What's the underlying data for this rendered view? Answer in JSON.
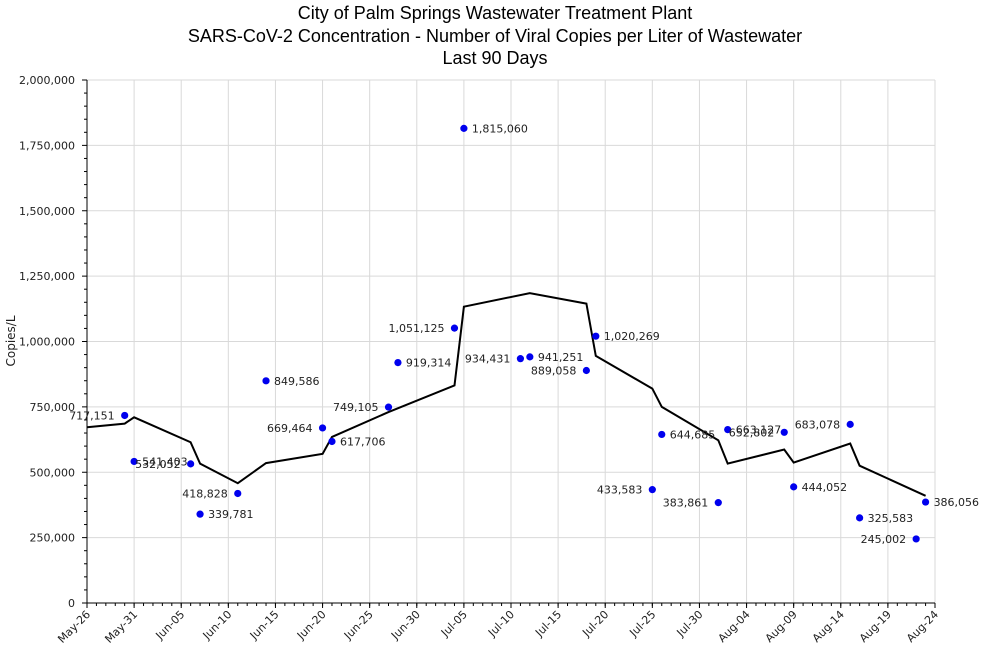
{
  "chart_data": {
    "type": "scatter",
    "title": [
      "City of Palm Springs Wastewater Treatment Plant",
      "SARS-CoV-2 Concentration - Number of Viral Copies per Liter of Wastewater",
      "Last 90 Days"
    ],
    "ylabel": "Copies/L",
    "ylim": [
      0,
      2000000
    ],
    "y_ticks": [
      0,
      250000,
      500000,
      750000,
      1000000,
      1250000,
      1500000,
      1750000,
      2000000
    ],
    "y_tick_labels": [
      "0",
      "250,000",
      "500,000",
      "750,000",
      "1,000,000",
      "1,250,000",
      "1,500,000",
      "1,750,000",
      "2,000,000"
    ],
    "x_ticks": [
      "2024-05-26",
      "2024-05-31",
      "2024-06-05",
      "2024-06-10",
      "2024-06-15",
      "2024-06-20",
      "2024-06-25",
      "2024-06-30",
      "2024-07-05",
      "2024-07-10",
      "2024-07-15",
      "2024-07-20",
      "2024-07-25",
      "2024-07-30",
      "2024-08-04",
      "2024-08-09",
      "2024-08-14",
      "2024-08-19",
      "2024-08-24"
    ],
    "x_tick_labels": [
      "May-26",
      "May-31",
      "Jun-05",
      "Jun-10",
      "Jun-15",
      "Jun-20",
      "Jun-25",
      "Jun-30",
      "Jul-05",
      "Jul-10",
      "Jul-15",
      "Jul-20",
      "Jul-25",
      "Jul-30",
      "Aug-04",
      "Aug-09",
      "Aug-14",
      "Aug-19",
      "Aug-24"
    ],
    "xlim": [
      "2024-05-26",
      "2024-08-24"
    ],
    "grid": true,
    "series": [
      {
        "kind": "scatter",
        "color": "#0000ee",
        "points": [
          {
            "x": "2024-05-30",
            "y": 717151,
            "label": "717,151"
          },
          {
            "x": "2024-05-31",
            "y": 541403,
            "label": "541,403"
          },
          {
            "x": "2024-06-06",
            "y": 532052,
            "label": "532,052"
          },
          {
            "x": "2024-06-07",
            "y": 339781,
            "label": "339,781"
          },
          {
            "x": "2024-06-11",
            "y": 418828,
            "label": "418,828"
          },
          {
            "x": "2024-06-14",
            "y": 849586,
            "label": "849,586"
          },
          {
            "x": "2024-06-20",
            "y": 669464,
            "label": "669,464"
          },
          {
            "x": "2024-06-21",
            "y": 617706,
            "label": "617,706"
          },
          {
            "x": "2024-06-27",
            "y": 749105,
            "label": "749,105"
          },
          {
            "x": "2024-06-28",
            "y": 919314,
            "label": "919,314"
          },
          {
            "x": "2024-07-04",
            "y": 1051125,
            "label": "1,051,125"
          },
          {
            "x": "2024-07-05",
            "y": 1815060,
            "label": "1,815,060"
          },
          {
            "x": "2024-07-11",
            "y": 934431,
            "label": "934,431"
          },
          {
            "x": "2024-07-12",
            "y": 941251,
            "label": "941,251"
          },
          {
            "x": "2024-07-18",
            "y": 889058,
            "label": "889,058"
          },
          {
            "x": "2024-07-19",
            "y": 1020269,
            "label": "1,020,269"
          },
          {
            "x": "2024-07-25",
            "y": 433583,
            "label": "433,583"
          },
          {
            "x": "2024-07-26",
            "y": 644685,
            "label": "644,685"
          },
          {
            "x": "2024-08-01",
            "y": 383861,
            "label": "383,861"
          },
          {
            "x": "2024-08-02",
            "y": 663127,
            "label": "663,127"
          },
          {
            "x": "2024-08-08",
            "y": 652802,
            "label": "652,802"
          },
          {
            "x": "2024-08-09",
            "y": 444052,
            "label": "444,052"
          },
          {
            "x": "2024-08-15",
            "y": 683078,
            "label": "683,078"
          },
          {
            "x": "2024-08-16",
            "y": 325583,
            "label": "325,583"
          },
          {
            "x": "2024-08-22",
            "y": 245002,
            "label": "245,002"
          },
          {
            "x": "2024-08-23",
            "y": 386056,
            "label": "386,056"
          }
        ]
      },
      {
        "kind": "line",
        "color": "#000000",
        "points": [
          {
            "x": "2024-05-26",
            "y": 672000
          },
          {
            "x": "2024-05-30",
            "y": 686000
          },
          {
            "x": "2024-05-31",
            "y": 710000
          },
          {
            "x": "2024-06-06",
            "y": 615000
          },
          {
            "x": "2024-06-07",
            "y": 533000
          },
          {
            "x": "2024-06-11",
            "y": 458000
          },
          {
            "x": "2024-06-14",
            "y": 535000
          },
          {
            "x": "2024-06-20",
            "y": 570000
          },
          {
            "x": "2024-06-21",
            "y": 635000
          },
          {
            "x": "2024-06-27",
            "y": 730000
          },
          {
            "x": "2024-07-04",
            "y": 832000
          },
          {
            "x": "2024-07-05",
            "y": 1133000
          },
          {
            "x": "2024-07-12",
            "y": 1185000
          },
          {
            "x": "2024-07-18",
            "y": 1145000
          },
          {
            "x": "2024-07-19",
            "y": 945000
          },
          {
            "x": "2024-07-25",
            "y": 820000
          },
          {
            "x": "2024-07-26",
            "y": 750000
          },
          {
            "x": "2024-08-01",
            "y": 622000
          },
          {
            "x": "2024-08-02",
            "y": 533000
          },
          {
            "x": "2024-08-08",
            "y": 587000
          },
          {
            "x": "2024-08-09",
            "y": 537000
          },
          {
            "x": "2024-08-15",
            "y": 610000
          },
          {
            "x": "2024-08-16",
            "y": 525000
          },
          {
            "x": "2024-08-23",
            "y": 410000
          }
        ]
      }
    ]
  }
}
